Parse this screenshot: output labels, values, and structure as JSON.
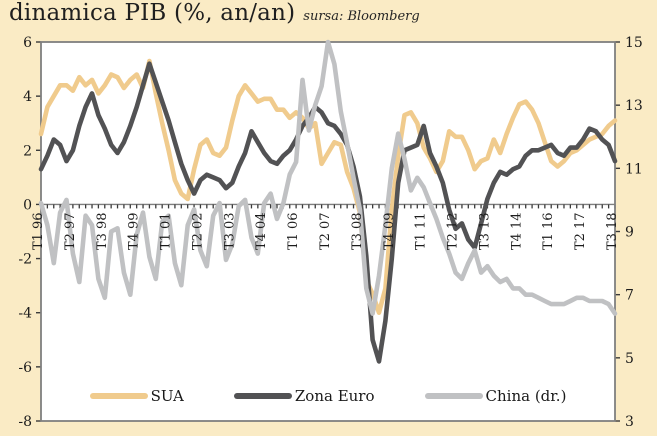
{
  "header": {
    "title": "dinamica PIB (%, an/an)",
    "source": "sursa: Bloomberg"
  },
  "colors": {
    "background": "#FAEBC5",
    "plot_bg": "#FFFFFF",
    "axis_line": "#7F7F7F",
    "tick": "#3A3A3A",
    "text": "#1C1C1C",
    "sua": "#F0CB8D",
    "zona_euro": "#525254",
    "china": "#C0C1C3"
  },
  "chart_data": {
    "type": "line",
    "title": "dinamica PIB (%, an/an)",
    "source": "sursa: Bloomberg",
    "grid": false,
    "legend_position": "bottom-inside",
    "x_unit": "quarters",
    "x_range": "1996Q1 - 2018Q3",
    "x_tick_every": 5,
    "x_tick_labels": [
      "T1 96",
      "T2 97",
      "T3 98",
      "T4 99",
      "T1 01",
      "T2 02",
      "T3 03",
      "T4 04",
      "T1 06",
      "T2 07",
      "T3 08",
      "T4 09",
      "T1 11",
      "T2 12",
      "T3 13",
      "T4 14",
      "T1 16",
      "T2 17",
      "T3 18"
    ],
    "left_axis": {
      "min": -8,
      "max": 6,
      "step": 2,
      "ticks": [
        6,
        4,
        2,
        0,
        -2,
        -4,
        -6,
        -8
      ]
    },
    "right_axis": {
      "min": 3,
      "max": 15,
      "step": 2,
      "ticks": [
        15,
        13,
        11,
        9,
        7,
        5,
        3
      ]
    },
    "series": [
      {
        "name": "SUA",
        "key": "sua",
        "axis": "left",
        "values": [
          2.6,
          3.6,
          4.0,
          4.4,
          4.4,
          4.2,
          4.7,
          4.4,
          4.6,
          4.1,
          4.4,
          4.8,
          4.7,
          4.3,
          4.6,
          4.8,
          4.3,
          5.3,
          4.1,
          3.0,
          2.0,
          0.9,
          0.4,
          0.2,
          1.3,
          2.2,
          2.4,
          1.9,
          1.8,
          2.1,
          3.1,
          4.0,
          4.4,
          4.1,
          3.8,
          3.9,
          3.9,
          3.5,
          3.5,
          3.2,
          3.4,
          3.2,
          2.8,
          3.0,
          1.5,
          1.9,
          2.3,
          2.2,
          1.2,
          0.6,
          -0.3,
          -2.8,
          -3.3,
          -4.0,
          -3.1,
          -0.2,
          1.8,
          3.3,
          3.4,
          3.0,
          2.1,
          1.7,
          1.2,
          1.6,
          2.7,
          2.5,
          2.5,
          2.0,
          1.3,
          1.6,
          1.7,
          2.4,
          1.9,
          2.6,
          3.2,
          3.7,
          3.8,
          3.5,
          3.0,
          2.3,
          1.6,
          1.4,
          1.6,
          1.9,
          2.0,
          2.2,
          2.4,
          2.5,
          2.6,
          2.9,
          3.1
        ]
      },
      {
        "name": "Zona Euro",
        "key": "zona_euro",
        "axis": "left",
        "values": [
          1.3,
          1.8,
          2.4,
          2.2,
          1.6,
          2.0,
          2.9,
          3.6,
          4.1,
          3.3,
          2.8,
          2.2,
          1.9,
          2.3,
          2.9,
          3.6,
          4.4,
          5.2,
          4.5,
          3.8,
          3.1,
          2.3,
          1.5,
          0.9,
          0.4,
          0.9,
          1.1,
          1.0,
          0.9,
          0.6,
          0.8,
          1.4,
          1.9,
          2.7,
          2.3,
          1.9,
          1.6,
          1.5,
          1.8,
          2.0,
          2.4,
          2.9,
          3.2,
          3.6,
          3.4,
          3.0,
          2.9,
          2.6,
          2.2,
          1.4,
          0.3,
          -1.9,
          -5.0,
          -5.8,
          -4.3,
          -2.0,
          0.8,
          2.0,
          2.1,
          2.2,
          2.9,
          1.9,
          1.4,
          0.8,
          -0.2,
          -0.9,
          -0.7,
          -1.3,
          -1.6,
          -0.7,
          0.2,
          0.8,
          1.2,
          1.1,
          1.3,
          1.4,
          1.8,
          2.0,
          2.0,
          2.1,
          2.2,
          1.9,
          1.8,
          2.1,
          2.1,
          2.4,
          2.8,
          2.7,
          2.4,
          2.2,
          1.6
        ]
      },
      {
        "name": "China (dr.)",
        "key": "china",
        "axis": "right",
        "values": [
          9.9,
          9.2,
          8.0,
          9.6,
          10.0,
          8.3,
          7.4,
          9.5,
          9.2,
          7.5,
          6.9,
          9.0,
          9.1,
          7.7,
          7.0,
          8.9,
          9.6,
          8.2,
          7.5,
          9.3,
          9.5,
          8.0,
          7.3,
          9.2,
          9.7,
          8.4,
          7.9,
          9.5,
          9.9,
          8.1,
          8.6,
          9.8,
          10.0,
          8.8,
          8.3,
          9.9,
          10.2,
          9.4,
          9.9,
          10.8,
          11.2,
          13.8,
          12.2,
          13.0,
          13.6,
          15.0,
          14.3,
          12.8,
          11.8,
          10.7,
          9.7,
          7.2,
          6.4,
          7.6,
          9.2,
          11.0,
          12.1,
          11.3,
          10.3,
          10.7,
          10.4,
          9.9,
          9.4,
          8.8,
          8.3,
          7.7,
          7.5,
          8.0,
          8.4,
          7.7,
          7.9,
          7.6,
          7.4,
          7.5,
          7.2,
          7.2,
          7.0,
          7.0,
          6.9,
          6.8,
          6.7,
          6.7,
          6.7,
          6.8,
          6.9,
          6.9,
          6.8,
          6.8,
          6.8,
          6.7,
          6.4
        ]
      }
    ]
  },
  "legend": {
    "items": [
      "SUA",
      "Zona Euro",
      "China (dr.)"
    ]
  }
}
